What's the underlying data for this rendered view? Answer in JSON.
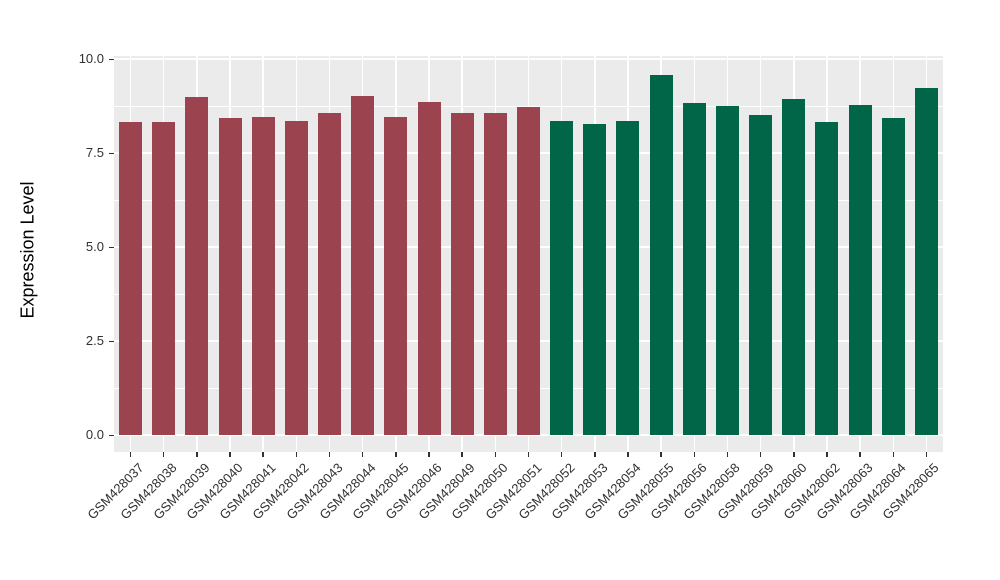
{
  "chart_data": {
    "type": "bar",
    "title": "",
    "xlabel": "",
    "ylabel": "Expression Level",
    "legend": "none",
    "grid": "on",
    "categories": [
      "GSM428037",
      "GSM428038",
      "GSM428039",
      "GSM428040",
      "GSM428041",
      "GSM428042",
      "GSM428043",
      "GSM428044",
      "GSM428045",
      "GSM428046",
      "GSM428049",
      "GSM428050",
      "GSM428051",
      "GSM428052",
      "GSM428053",
      "GSM428054",
      "GSM428055",
      "GSM428056",
      "GSM428058",
      "GSM428059",
      "GSM428060",
      "GSM428062",
      "GSM428063",
      "GSM428064",
      "GSM428065"
    ],
    "values": [
      8.33,
      8.33,
      9.0,
      8.42,
      8.47,
      8.36,
      8.56,
      9.02,
      8.47,
      8.85,
      8.57,
      8.56,
      8.72,
      8.35,
      8.27,
      8.36,
      9.57,
      8.84,
      8.76,
      8.51,
      8.93,
      8.33,
      8.78,
      8.44,
      9.24
    ],
    "groups": [
      "group1",
      "group1",
      "group1",
      "group1",
      "group1",
      "group1",
      "group1",
      "group1",
      "group1",
      "group1",
      "group1",
      "group1",
      "group1",
      "group2",
      "group2",
      "group2",
      "group2",
      "group2",
      "group2",
      "group2",
      "group2",
      "group2",
      "group2",
      "group2",
      "group2"
    ],
    "palette": {
      "group1": "#9B4450",
      "group2": "#006647"
    },
    "ytick_labels": [
      "0.0",
      "2.5",
      "5.0",
      "7.5",
      "10.0"
    ],
    "ytick_values": [
      0.0,
      2.5,
      5.0,
      7.5,
      10.0
    ],
    "yminor_values": [
      1.25,
      3.75,
      6.25,
      8.75
    ],
    "ylim": [
      0,
      10.0
    ],
    "panel_domain": [
      -0.45,
      10.08
    ],
    "style": {
      "panel_bg": "#EBEBEB",
      "grid_color": "#FFFFFF",
      "tick_color": "#333333",
      "axis_text_color": "#303030",
      "axis_title_color": "#000000"
    }
  }
}
